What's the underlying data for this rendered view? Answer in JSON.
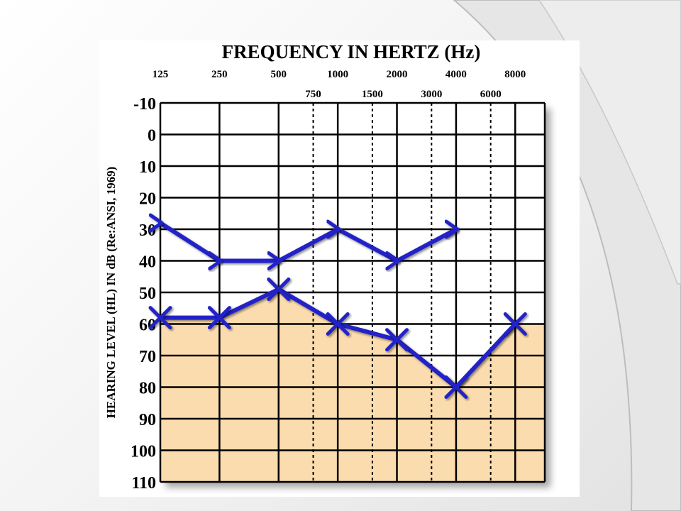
{
  "chart_data": {
    "type": "line",
    "title": "FREQUENCY IN HERTZ (Hz)",
    "ylabel": "HEARING LEVEL (HL) IN dB (Re:ANSI, 1969)",
    "x_major_ticks": [
      "125",
      "250",
      "500",
      "1000",
      "2000",
      "4000",
      "8000"
    ],
    "x_minor_ticks": [
      "750",
      "1500",
      "3000",
      "6000"
    ],
    "y_ticks": [
      "-10",
      "0",
      "10",
      "20",
      "30",
      "40",
      "50",
      "60",
      "70",
      "80",
      "90",
      "100",
      "110"
    ],
    "ylim": [
      -10,
      110
    ],
    "y_inverted": true,
    "grid": true,
    "series": [
      {
        "marker": "arrow",
        "color": "#2323c8",
        "points": [
          {
            "x": 125,
            "y": 28
          },
          {
            "x": 250,
            "y": 40
          },
          {
            "x": 500,
            "y": 40
          },
          {
            "x": 1000,
            "y": 30
          },
          {
            "x": 2000,
            "y": 40
          },
          {
            "x": 4000,
            "y": 30
          }
        ]
      },
      {
        "marker": "x",
        "color": "#2323c8",
        "points": [
          {
            "x": 125,
            "y": 58
          },
          {
            "x": 250,
            "y": 58
          },
          {
            "x": 500,
            "y": 49
          },
          {
            "x": 1000,
            "y": 60
          },
          {
            "x": 2000,
            "y": 65
          },
          {
            "x": 4000,
            "y": 80
          },
          {
            "x": 8000,
            "y": 60
          }
        ]
      }
    ],
    "fill_below_series": 1,
    "fill_color": "#fbdcae"
  }
}
